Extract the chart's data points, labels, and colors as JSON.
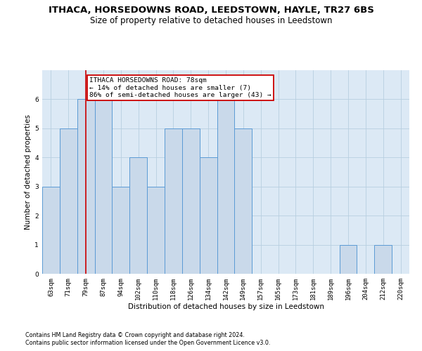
{
  "title": "ITHACA, HORSEDOWNS ROAD, LEEDSTOWN, HAYLE, TR27 6BS",
  "subtitle": "Size of property relative to detached houses in Leedstown",
  "xlabel": "Distribution of detached houses by size in Leedstown",
  "ylabel": "Number of detached properties",
  "footer_line1": "Contains HM Land Registry data © Crown copyright and database right 2024.",
  "footer_line2": "Contains public sector information licensed under the Open Government Licence v3.0.",
  "categories": [
    "63sqm",
    "71sqm",
    "79sqm",
    "87sqm",
    "94sqm",
    "102sqm",
    "110sqm",
    "118sqm",
    "126sqm",
    "134sqm",
    "142sqm",
    "149sqm",
    "157sqm",
    "165sqm",
    "173sqm",
    "181sqm",
    "189sqm",
    "196sqm",
    "204sqm",
    "212sqm",
    "220sqm"
  ],
  "values": [
    3,
    5,
    6,
    6,
    3,
    4,
    3,
    5,
    5,
    4,
    6,
    5,
    0,
    0,
    0,
    0,
    0,
    1,
    0,
    1,
    0
  ],
  "bar_color": "#c9d9ea",
  "bar_edge_color": "#5b9bd5",
  "subject_idx": 2,
  "subject_line_color": "#cc0000",
  "annotation_text": "ITHACA HORSEDOWNS ROAD: 78sqm\n← 14% of detached houses are smaller (7)\n86% of semi-detached houses are larger (43) →",
  "annotation_box_color": "#cc0000",
  "ylim": [
    0,
    7
  ],
  "yticks": [
    0,
    1,
    2,
    3,
    4,
    5,
    6
  ],
  "ax_bg_color": "#dce9f5",
  "background_color": "#ffffff",
  "grid_color": "#b8cfe0",
  "title_fontsize": 9.5,
  "subtitle_fontsize": 8.5,
  "axis_label_fontsize": 7.5,
  "tick_fontsize": 6.5,
  "annotation_fontsize": 6.8,
  "footer_fontsize": 5.8
}
